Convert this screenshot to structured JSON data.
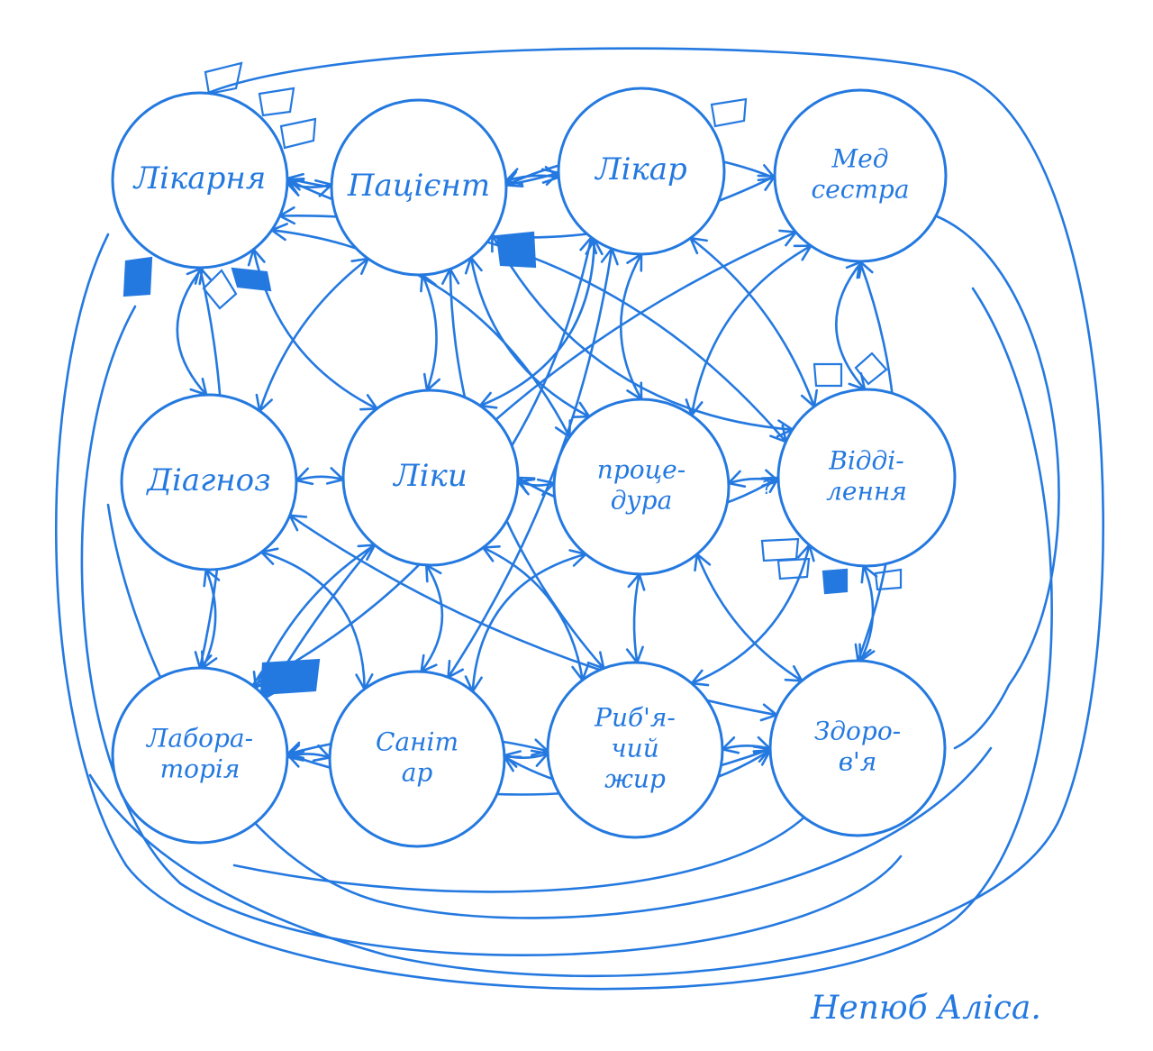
{
  "nodes": [
    {
      "id": "hospital",
      "lines": [
        "Лікарня"
      ]
    },
    {
      "id": "patient",
      "lines": [
        "Пацієнт"
      ]
    },
    {
      "id": "doctor",
      "lines": [
        "Лікар"
      ]
    },
    {
      "id": "nurse",
      "lines": [
        "Мед",
        "сестра"
      ]
    },
    {
      "id": "diagnosis",
      "lines": [
        "Діагноз"
      ]
    },
    {
      "id": "medicine",
      "lines": [
        "Ліки"
      ]
    },
    {
      "id": "procedure",
      "lines": [
        "проце-",
        "дура"
      ]
    },
    {
      "id": "department",
      "lines": [
        "Відді-",
        "лення"
      ]
    },
    {
      "id": "laboratory",
      "lines": [
        "Лабора-",
        "торія"
      ]
    },
    {
      "id": "orderly",
      "lines": [
        "Саніт",
        "ар"
      ]
    },
    {
      "id": "fish_oil",
      "lines": [
        "Риб'я-",
        "чий",
        "жир"
      ]
    },
    {
      "id": "health",
      "lines": [
        "Здоро-",
        "в'я"
      ]
    }
  ],
  "edges": [
    [
      "hospital",
      "patient"
    ],
    [
      "patient",
      "doctor"
    ],
    [
      "medicine",
      "diagnosis"
    ],
    [
      "medicine",
      "procedure"
    ],
    [
      "procedure",
      "department"
    ],
    [
      "laboratory",
      "orderly"
    ],
    [
      "orderly",
      "fish_oil"
    ],
    [
      "fish_oil",
      "health"
    ],
    [
      "hospital",
      "diagnosis"
    ],
    [
      "patient",
      "medicine"
    ],
    [
      "doctor",
      "procedure"
    ],
    [
      "nurse",
      "department"
    ],
    [
      "diagnosis",
      "laboratory"
    ],
    [
      "medicine",
      "orderly"
    ],
    [
      "procedure",
      "fish_oil"
    ],
    [
      "department",
      "health"
    ],
    [
      "hospital",
      "medicine"
    ],
    [
      "hospital",
      "procedure"
    ],
    [
      "patient",
      "diagnosis"
    ],
    [
      "patient",
      "procedure"
    ],
    [
      "doctor",
      "medicine"
    ],
    [
      "doctor",
      "department"
    ],
    [
      "nurse",
      "procedure"
    ],
    [
      "diagnosis",
      "orderly"
    ],
    [
      "medicine",
      "laboratory"
    ],
    [
      "medicine",
      "fish_oil"
    ],
    [
      "procedure",
      "orderly"
    ],
    [
      "procedure",
      "health"
    ],
    [
      "department",
      "fish_oil"
    ],
    [
      "department",
      "medicine"
    ],
    [
      "hospital",
      "doctor"
    ],
    [
      "patient",
      "nurse"
    ],
    [
      "hospital",
      "nurse"
    ],
    [
      "laboratory",
      "fish_oil"
    ],
    [
      "laboratory",
      "health"
    ],
    [
      "orderly",
      "health"
    ],
    [
      "hospital",
      "laboratory"
    ],
    [
      "nurse",
      "health"
    ],
    [
      "patient",
      "department"
    ],
    [
      "doctor",
      "orderly"
    ],
    [
      "nurse",
      "laboratory"
    ],
    [
      "hospital",
      "department"
    ],
    [
      "diagnosis",
      "health"
    ],
    [
      "patient",
      "fish_oil"
    ],
    [
      "doctor",
      "laboratory"
    ]
  ],
  "question_mark": "?",
  "signature": "Непюб Аліса."
}
